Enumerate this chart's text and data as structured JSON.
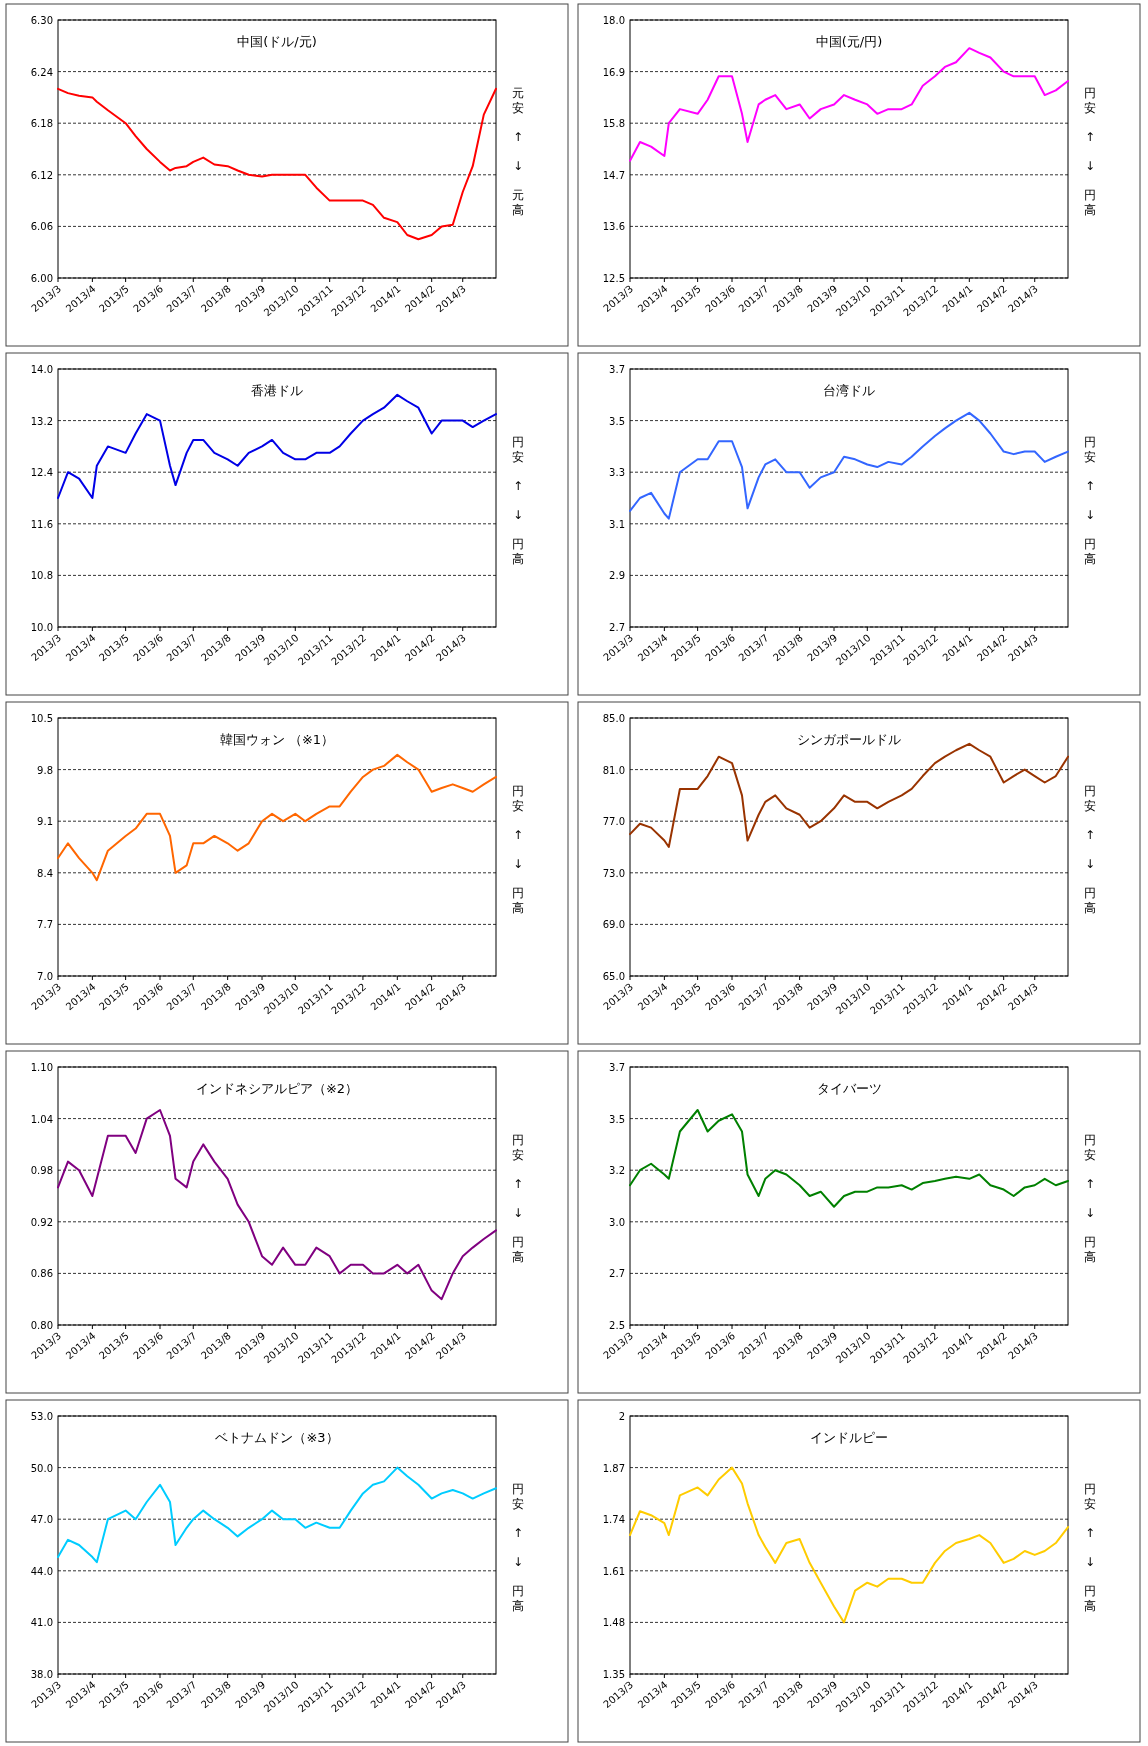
{
  "chart_data": [
    {
      "type": "line",
      "title": "中国(ドル/元)",
      "color": "#ff0000",
      "grid": "y",
      "annotations": [
        "元安",
        "↑",
        "↓",
        "元高"
      ],
      "xlim": [
        "2013-03-01",
        "2014-03-31"
      ],
      "xticks": [
        {
          "value": "2013-03-01",
          "label": "2013/3"
        },
        {
          "value": "2013-04-01",
          "label": "2013/4"
        },
        {
          "value": "2013-05-01",
          "label": "2013/5"
        },
        {
          "value": "2013-06-01",
          "label": "2013/6"
        },
        {
          "value": "2013-07-01",
          "label": "2013/7"
        },
        {
          "value": "2013-08-01",
          "label": "2013/8"
        },
        {
          "value": "2013-09-01",
          "label": "2013/9"
        },
        {
          "value": "2013-10-01",
          "label": "2013/10"
        },
        {
          "value": "2013-11-01",
          "label": "2013/11"
        },
        {
          "value": "2013-12-01",
          "label": "2013/12"
        },
        {
          "value": "2014-01-01",
          "label": "2014/1"
        },
        {
          "value": "2014-02-01",
          "label": "2014/2"
        },
        {
          "value": "2014-03-01",
          "label": "2014/3"
        }
      ],
      "ylim": [
        6.0,
        6.3
      ],
      "yticks": [
        {
          "value": 6.0,
          "label": "6.00"
        },
        {
          "value": 6.06,
          "label": "6.06"
        },
        {
          "value": 6.12,
          "label": "6.12"
        },
        {
          "value": 6.18,
          "label": "6.18"
        },
        {
          "value": 6.24,
          "label": "6.24"
        },
        {
          "value": 6.3,
          "label": "6.30"
        }
      ],
      "x": [
        "2013-03-01",
        "2013-03-10",
        "2013-03-20",
        "2013-04-01",
        "2013-04-05",
        "2013-04-15",
        "2013-05-01",
        "2013-05-10",
        "2013-05-20",
        "2013-06-01",
        "2013-06-10",
        "2013-06-15",
        "2013-06-25",
        "2013-07-01",
        "2013-07-10",
        "2013-07-20",
        "2013-08-01",
        "2013-08-10",
        "2013-08-20",
        "2013-09-01",
        "2013-09-10",
        "2013-09-20",
        "2013-10-01",
        "2013-10-10",
        "2013-10-20",
        "2013-11-01",
        "2013-11-10",
        "2013-11-20",
        "2013-12-01",
        "2013-12-10",
        "2013-12-20",
        "2014-01-01",
        "2014-01-10",
        "2014-01-20",
        "2014-02-01",
        "2014-02-10",
        "2014-02-20",
        "2014-03-01",
        "2014-03-10",
        "2014-03-20",
        "2014-03-31"
      ],
      "values": [
        6.22,
        6.215,
        6.212,
        6.21,
        6.205,
        6.195,
        6.18,
        6.165,
        6.15,
        6.135,
        6.125,
        6.128,
        6.13,
        6.135,
        6.14,
        6.132,
        6.13,
        6.125,
        6.12,
        6.118,
        6.12,
        6.12,
        6.12,
        6.12,
        6.105,
        6.09,
        6.09,
        6.09,
        6.09,
        6.085,
        6.07,
        6.065,
        6.05,
        6.045,
        6.05,
        6.06,
        6.062,
        6.1,
        6.13,
        6.19,
        6.22
      ]
    },
    {
      "type": "line",
      "title": "中国(元/円)",
      "color": "#ff00ff",
      "grid": "y",
      "annotations": [
        "円安",
        "↑",
        "↓",
        "円高"
      ],
      "xlim": [
        "2013-03-01",
        "2014-03-31"
      ],
      "xticks": [
        {
          "value": "2013-03-01",
          "label": "2013/3"
        },
        {
          "value": "2013-04-01",
          "label": "2013/4"
        },
        {
          "value": "2013-05-01",
          "label": "2013/5"
        },
        {
          "value": "2013-06-01",
          "label": "2013/6"
        },
        {
          "value": "2013-07-01",
          "label": "2013/7"
        },
        {
          "value": "2013-08-01",
          "label": "2013/8"
        },
        {
          "value": "2013-09-01",
          "label": "2013/9"
        },
        {
          "value": "2013-10-01",
          "label": "2013/10"
        },
        {
          "value": "2013-11-01",
          "label": "2013/11"
        },
        {
          "value": "2013-12-01",
          "label": "2013/12"
        },
        {
          "value": "2014-01-01",
          "label": "2014/1"
        },
        {
          "value": "2014-02-01",
          "label": "2014/2"
        },
        {
          "value": "2014-03-01",
          "label": "2014/3"
        }
      ],
      "ylim": [
        12.5,
        18.0
      ],
      "yticks": [
        {
          "value": 12.5,
          "label": "12.5"
        },
        {
          "value": 13.6,
          "label": "13.6"
        },
        {
          "value": 14.7,
          "label": "14.7"
        },
        {
          "value": 15.8,
          "label": "15.8"
        },
        {
          "value": 16.9,
          "label": "16.9"
        },
        {
          "value": 18.0,
          "label": "18.0"
        }
      ],
      "x": [
        "2013-03-01",
        "2013-03-10",
        "2013-03-20",
        "2013-04-01",
        "2013-04-05",
        "2013-04-15",
        "2013-05-01",
        "2013-05-10",
        "2013-05-20",
        "2013-06-01",
        "2013-06-10",
        "2013-06-15",
        "2013-06-25",
        "2013-07-01",
        "2013-07-10",
        "2013-07-20",
        "2013-08-01",
        "2013-08-10",
        "2013-08-20",
        "2013-09-01",
        "2013-09-10",
        "2013-09-20",
        "2013-10-01",
        "2013-10-10",
        "2013-10-20",
        "2013-11-01",
        "2013-11-10",
        "2013-11-20",
        "2013-12-01",
        "2013-12-10",
        "2013-12-20",
        "2014-01-01",
        "2014-01-10",
        "2014-01-20",
        "2014-02-01",
        "2014-02-10",
        "2014-02-20",
        "2014-03-01",
        "2014-03-10",
        "2014-03-20",
        "2014-03-31"
      ],
      "values": [
        15.0,
        15.4,
        15.3,
        15.1,
        15.8,
        16.1,
        16.0,
        16.3,
        16.8,
        16.8,
        16.0,
        15.4,
        16.2,
        16.3,
        16.4,
        16.1,
        16.2,
        15.9,
        16.1,
        16.2,
        16.4,
        16.3,
        16.2,
        16.0,
        16.1,
        16.1,
        16.2,
        16.6,
        16.8,
        17.0,
        17.1,
        17.4,
        17.3,
        17.2,
        16.9,
        16.8,
        16.8,
        16.8,
        16.4,
        16.5,
        16.7
      ]
    },
    {
      "type": "line",
      "title": "香港ドル",
      "color": "#0000e6",
      "grid": "y",
      "annotations": [
        "円安",
        "↑",
        "↓",
        "円高"
      ],
      "xlim": [
        "2013-03-01",
        "2014-03-31"
      ],
      "xticks": [
        {
          "value": "2013-03-01",
          "label": "2013/3"
        },
        {
          "value": "2013-04-01",
          "label": "2013/4"
        },
        {
          "value": "2013-05-01",
          "label": "2013/5"
        },
        {
          "value": "2013-06-01",
          "label": "2013/6"
        },
        {
          "value": "2013-07-01",
          "label": "2013/7"
        },
        {
          "value": "2013-08-01",
          "label": "2013/8"
        },
        {
          "value": "2013-09-01",
          "label": "2013/9"
        },
        {
          "value": "2013-10-01",
          "label": "2013/10"
        },
        {
          "value": "2013-11-01",
          "label": "2013/11"
        },
        {
          "value": "2013-12-01",
          "label": "2013/12"
        },
        {
          "value": "2014-01-01",
          "label": "2014/1"
        },
        {
          "value": "2014-02-01",
          "label": "2014/2"
        },
        {
          "value": "2014-03-01",
          "label": "2014/3"
        }
      ],
      "ylim": [
        10.0,
        14.0
      ],
      "yticks": [
        {
          "value": 10.0,
          "label": "10.0"
        },
        {
          "value": 10.8,
          "label": "10.8"
        },
        {
          "value": 11.6,
          "label": "11.6"
        },
        {
          "value": 12.4,
          "label": "12.4"
        },
        {
          "value": 13.2,
          "label": "13.2"
        },
        {
          "value": 14.0,
          "label": "14.0"
        }
      ],
      "x": [
        "2013-03-01",
        "2013-03-10",
        "2013-03-20",
        "2013-04-01",
        "2013-04-05",
        "2013-04-15",
        "2013-05-01",
        "2013-05-10",
        "2013-05-20",
        "2013-06-01",
        "2013-06-10",
        "2013-06-15",
        "2013-06-25",
        "2013-07-01",
        "2013-07-10",
        "2013-07-20",
        "2013-08-01",
        "2013-08-10",
        "2013-08-20",
        "2013-09-01",
        "2013-09-10",
        "2013-09-20",
        "2013-10-01",
        "2013-10-10",
        "2013-10-20",
        "2013-11-01",
        "2013-11-10",
        "2013-11-20",
        "2013-12-01",
        "2013-12-10",
        "2013-12-20",
        "2014-01-01",
        "2014-01-10",
        "2014-01-20",
        "2014-02-01",
        "2014-02-10",
        "2014-02-20",
        "2014-03-01",
        "2014-03-10",
        "2014-03-20",
        "2014-03-31"
      ],
      "values": [
        12.0,
        12.4,
        12.3,
        12.0,
        12.5,
        12.8,
        12.7,
        13.0,
        13.3,
        13.2,
        12.5,
        12.2,
        12.7,
        12.9,
        12.9,
        12.7,
        12.6,
        12.5,
        12.7,
        12.8,
        12.9,
        12.7,
        12.6,
        12.6,
        12.7,
        12.7,
        12.8,
        13.0,
        13.2,
        13.3,
        13.4,
        13.6,
        13.5,
        13.4,
        13.0,
        13.2,
        13.2,
        13.2,
        13.1,
        13.2,
        13.3
      ]
    },
    {
      "type": "line",
      "title": "台湾ドル",
      "color": "#3366ff",
      "grid": "y",
      "annotations": [
        "円安",
        "↑",
        "↓",
        "円高"
      ],
      "xlim": [
        "2013-03-01",
        "2014-03-31"
      ],
      "xticks": [
        {
          "value": "2013-03-01",
          "label": "2013/3"
        },
        {
          "value": "2013-04-01",
          "label": "2013/4"
        },
        {
          "value": "2013-05-01",
          "label": "2013/5"
        },
        {
          "value": "2013-06-01",
          "label": "2013/6"
        },
        {
          "value": "2013-07-01",
          "label": "2013/7"
        },
        {
          "value": "2013-08-01",
          "label": "2013/8"
        },
        {
          "value": "2013-09-01",
          "label": "2013/9"
        },
        {
          "value": "2013-10-01",
          "label": "2013/10"
        },
        {
          "value": "2013-11-01",
          "label": "2013/11"
        },
        {
          "value": "2013-12-01",
          "label": "2013/12"
        },
        {
          "value": "2014-01-01",
          "label": "2014/1"
        },
        {
          "value": "2014-02-01",
          "label": "2014/2"
        },
        {
          "value": "2014-03-01",
          "label": "2014/3"
        }
      ],
      "ylim": [
        2.7,
        3.7
      ],
      "yticks": [
        {
          "value": 2.7,
          "label": "2.7"
        },
        {
          "value": 2.9,
          "label": "2.9"
        },
        {
          "value": 3.1,
          "label": "3.1"
        },
        {
          "value": 3.3,
          "label": "3.3"
        },
        {
          "value": 3.5,
          "label": "3.5"
        },
        {
          "value": 3.7,
          "label": "3.7"
        }
      ],
      "x": [
        "2013-03-01",
        "2013-03-10",
        "2013-03-20",
        "2013-04-01",
        "2013-04-05",
        "2013-04-15",
        "2013-05-01",
        "2013-05-10",
        "2013-05-20",
        "2013-06-01",
        "2013-06-10",
        "2013-06-15",
        "2013-06-25",
        "2013-07-01",
        "2013-07-10",
        "2013-07-20",
        "2013-08-01",
        "2013-08-10",
        "2013-08-20",
        "2013-09-01",
        "2013-09-10",
        "2013-09-20",
        "2013-10-01",
        "2013-10-10",
        "2013-10-20",
        "2013-11-01",
        "2013-11-10",
        "2013-11-20",
        "2013-12-01",
        "2013-12-10",
        "2013-12-20",
        "2014-01-01",
        "2014-01-10",
        "2014-01-20",
        "2014-02-01",
        "2014-02-10",
        "2014-02-20",
        "2014-03-01",
        "2014-03-10",
        "2014-03-20",
        "2014-03-31"
      ],
      "values": [
        3.15,
        3.2,
        3.22,
        3.14,
        3.12,
        3.3,
        3.35,
        3.35,
        3.42,
        3.42,
        3.32,
        3.16,
        3.28,
        3.33,
        3.35,
        3.3,
        3.3,
        3.24,
        3.28,
        3.3,
        3.36,
        3.35,
        3.33,
        3.32,
        3.34,
        3.33,
        3.36,
        3.4,
        3.44,
        3.47,
        3.5,
        3.53,
        3.5,
        3.45,
        3.38,
        3.37,
        3.38,
        3.38,
        3.34,
        3.36,
        3.38
      ]
    },
    {
      "type": "line",
      "title": "韓国ウォン （※1）",
      "color": "#ff6600",
      "grid": "y",
      "annotations": [
        "円安",
        "↑",
        "↓",
        "円高"
      ],
      "xlim": [
        "2013-03-01",
        "2014-03-31"
      ],
      "xticks": [
        {
          "value": "2013-03-01",
          "label": "2013/3"
        },
        {
          "value": "2013-04-01",
          "label": "2013/4"
        },
        {
          "value": "2013-05-01",
          "label": "2013/5"
        },
        {
          "value": "2013-06-01",
          "label": "2013/6"
        },
        {
          "value": "2013-07-01",
          "label": "2013/7"
        },
        {
          "value": "2013-08-01",
          "label": "2013/8"
        },
        {
          "value": "2013-09-01",
          "label": "2013/9"
        },
        {
          "value": "2013-10-01",
          "label": "2013/10"
        },
        {
          "value": "2013-11-01",
          "label": "2013/11"
        },
        {
          "value": "2013-12-01",
          "label": "2013/12"
        },
        {
          "value": "2014-01-01",
          "label": "2014/1"
        },
        {
          "value": "2014-02-01",
          "label": "2014/2"
        },
        {
          "value": "2014-03-01",
          "label": "2014/3"
        }
      ],
      "ylim": [
        7.0,
        10.5
      ],
      "yticks": [
        {
          "value": 7.0,
          "label": "7.0"
        },
        {
          "value": 7.7,
          "label": "7.7"
        },
        {
          "value": 8.4,
          "label": "8.4"
        },
        {
          "value": 9.1,
          "label": "9.1"
        },
        {
          "value": 9.8,
          "label": "9.8"
        },
        {
          "value": 10.5,
          "label": "10.5"
        }
      ],
      "x": [
        "2013-03-01",
        "2013-03-10",
        "2013-03-20",
        "2013-04-01",
        "2013-04-05",
        "2013-04-15",
        "2013-05-01",
        "2013-05-10",
        "2013-05-20",
        "2013-06-01",
        "2013-06-10",
        "2013-06-15",
        "2013-06-25",
        "2013-07-01",
        "2013-07-10",
        "2013-07-20",
        "2013-08-01",
        "2013-08-10",
        "2013-08-20",
        "2013-09-01",
        "2013-09-10",
        "2013-09-20",
        "2013-10-01",
        "2013-10-10",
        "2013-10-20",
        "2013-11-01",
        "2013-11-10",
        "2013-11-20",
        "2013-12-01",
        "2013-12-10",
        "2013-12-20",
        "2014-01-01",
        "2014-01-10",
        "2014-01-20",
        "2014-02-01",
        "2014-02-10",
        "2014-02-20",
        "2014-03-01",
        "2014-03-10",
        "2014-03-20",
        "2014-03-31"
      ],
      "values": [
        8.6,
        8.8,
        8.6,
        8.4,
        8.3,
        8.7,
        8.9,
        9.0,
        9.2,
        9.2,
        8.9,
        8.4,
        8.5,
        8.8,
        8.8,
        8.9,
        8.8,
        8.7,
        8.8,
        9.1,
        9.2,
        9.1,
        9.2,
        9.1,
        9.2,
        9.3,
        9.3,
        9.5,
        9.7,
        9.8,
        9.85,
        10.0,
        9.9,
        9.8,
        9.5,
        9.55,
        9.6,
        9.55,
        9.5,
        9.6,
        9.7
      ]
    },
    {
      "type": "line",
      "title": "シンガポールドル",
      "color": "#993300",
      "grid": "y",
      "annotations": [
        "円安",
        "↑",
        "↓",
        "円高"
      ],
      "xlim": [
        "2013-03-01",
        "2014-03-31"
      ],
      "xticks": [
        {
          "value": "2013-03-01",
          "label": "2013/3"
        },
        {
          "value": "2013-04-01",
          "label": "2013/4"
        },
        {
          "value": "2013-05-01",
          "label": "2013/5"
        },
        {
          "value": "2013-06-01",
          "label": "2013/6"
        },
        {
          "value": "2013-07-01",
          "label": "2013/7"
        },
        {
          "value": "2013-08-01",
          "label": "2013/8"
        },
        {
          "value": "2013-09-01",
          "label": "2013/9"
        },
        {
          "value": "2013-10-01",
          "label": "2013/10"
        },
        {
          "value": "2013-11-01",
          "label": "2013/11"
        },
        {
          "value": "2013-12-01",
          "label": "2013/12"
        },
        {
          "value": "2014-01-01",
          "label": "2014/1"
        },
        {
          "value": "2014-02-01",
          "label": "2014/2"
        },
        {
          "value": "2014-03-01",
          "label": "2014/3"
        }
      ],
      "ylim": [
        65.0,
        85.0
      ],
      "yticks": [
        {
          "value": 65.0,
          "label": "65.0"
        },
        {
          "value": 69.0,
          "label": "69.0"
        },
        {
          "value": 73.0,
          "label": "73.0"
        },
        {
          "value": 77.0,
          "label": "77.0"
        },
        {
          "value": 81.0,
          "label": "81.0"
        },
        {
          "value": 85.0,
          "label": "85.0"
        }
      ],
      "x": [
        "2013-03-01",
        "2013-03-10",
        "2013-03-20",
        "2013-04-01",
        "2013-04-05",
        "2013-04-15",
        "2013-05-01",
        "2013-05-10",
        "2013-05-20",
        "2013-06-01",
        "2013-06-10",
        "2013-06-15",
        "2013-06-25",
        "2013-07-01",
        "2013-07-10",
        "2013-07-20",
        "2013-08-01",
        "2013-08-10",
        "2013-08-20",
        "2013-09-01",
        "2013-09-10",
        "2013-09-20",
        "2013-10-01",
        "2013-10-10",
        "2013-10-20",
        "2013-11-01",
        "2013-11-10",
        "2013-11-20",
        "2013-12-01",
        "2013-12-10",
        "2013-12-20",
        "2014-01-01",
        "2014-01-10",
        "2014-01-20",
        "2014-02-01",
        "2014-02-10",
        "2014-02-20",
        "2014-03-01",
        "2014-03-10",
        "2014-03-20",
        "2014-03-31"
      ],
      "values": [
        76.0,
        76.8,
        76.5,
        75.5,
        75.0,
        79.5,
        79.5,
        80.5,
        82.0,
        81.5,
        79.0,
        75.5,
        77.5,
        78.5,
        79.0,
        78.0,
        77.5,
        76.5,
        77.0,
        78.0,
        79.0,
        78.5,
        78.5,
        78.0,
        78.5,
        79.0,
        79.5,
        80.5,
        81.5,
        82.0,
        82.5,
        83.0,
        82.5,
        82.0,
        80.0,
        80.5,
        81.0,
        80.5,
        80.0,
        80.5,
        82.0
      ]
    },
    {
      "type": "line",
      "title": "インドネシアルピア（※2）",
      "color": "#800080",
      "grid": "y",
      "annotations": [
        "円安",
        "↑",
        "↓",
        "円高"
      ],
      "xlim": [
        "2013-03-01",
        "2014-03-31"
      ],
      "xticks": [
        {
          "value": "2013-03-01",
          "label": "2013/3"
        },
        {
          "value": "2013-04-01",
          "label": "2013/4"
        },
        {
          "value": "2013-05-01",
          "label": "2013/5"
        },
        {
          "value": "2013-06-01",
          "label": "2013/6"
        },
        {
          "value": "2013-07-01",
          "label": "2013/7"
        },
        {
          "value": "2013-08-01",
          "label": "2013/8"
        },
        {
          "value": "2013-09-01",
          "label": "2013/9"
        },
        {
          "value": "2013-10-01",
          "label": "2013/10"
        },
        {
          "value": "2013-11-01",
          "label": "2013/11"
        },
        {
          "value": "2013-12-01",
          "label": "2013/12"
        },
        {
          "value": "2014-01-01",
          "label": "2014/1"
        },
        {
          "value": "2014-02-01",
          "label": "2014/2"
        },
        {
          "value": "2014-03-01",
          "label": "2014/3"
        }
      ],
      "ylim": [
        0.8,
        1.1
      ],
      "yticks": [
        {
          "value": 0.8,
          "label": "0.80"
        },
        {
          "value": 0.86,
          "label": "0.86"
        },
        {
          "value": 0.92,
          "label": "0.92"
        },
        {
          "value": 0.98,
          "label": "0.98"
        },
        {
          "value": 1.04,
          "label": "1.04"
        },
        {
          "value": 1.1,
          "label": "1.10"
        }
      ],
      "x": [
        "2013-03-01",
        "2013-03-10",
        "2013-03-20",
        "2013-04-01",
        "2013-04-05",
        "2013-04-15",
        "2013-05-01",
        "2013-05-10",
        "2013-05-20",
        "2013-06-01",
        "2013-06-10",
        "2013-06-15",
        "2013-06-25",
        "2013-07-01",
        "2013-07-10",
        "2013-07-20",
        "2013-08-01",
        "2013-08-10",
        "2013-08-20",
        "2013-09-01",
        "2013-09-10",
        "2013-09-20",
        "2013-10-01",
        "2013-10-10",
        "2013-10-20",
        "2013-11-01",
        "2013-11-10",
        "2013-11-20",
        "2013-12-01",
        "2013-12-10",
        "2013-12-20",
        "2014-01-01",
        "2014-01-10",
        "2014-01-20",
        "2014-02-01",
        "2014-02-10",
        "2014-02-20",
        "2014-03-01",
        "2014-03-10",
        "2014-03-20",
        "2014-03-31"
      ],
      "values": [
        0.96,
        0.99,
        0.98,
        0.95,
        0.97,
        1.02,
        1.02,
        1.0,
        1.04,
        1.05,
        1.02,
        0.97,
        0.96,
        0.99,
        1.01,
        0.99,
        0.97,
        0.94,
        0.92,
        0.88,
        0.87,
        0.89,
        0.87,
        0.87,
        0.89,
        0.88,
        0.86,
        0.87,
        0.87,
        0.86,
        0.86,
        0.87,
        0.86,
        0.87,
        0.84,
        0.83,
        0.86,
        0.88,
        0.89,
        0.9,
        0.91
      ]
    },
    {
      "type": "line",
      "title": "タイバーツ",
      "color": "#008000",
      "grid": "y",
      "annotations": [
        "円安",
        "↑",
        "↓",
        "円高"
      ],
      "xlim": [
        "2013-03-01",
        "2014-03-31"
      ],
      "xticks": [
        {
          "value": "2013-03-01",
          "label": "2013/3"
        },
        {
          "value": "2013-04-01",
          "label": "2013/4"
        },
        {
          "value": "2013-05-01",
          "label": "2013/5"
        },
        {
          "value": "2013-06-01",
          "label": "2013/6"
        },
        {
          "value": "2013-07-01",
          "label": "2013/7"
        },
        {
          "value": "2013-08-01",
          "label": "2013/8"
        },
        {
          "value": "2013-09-01",
          "label": "2013/9"
        },
        {
          "value": "2013-10-01",
          "label": "2013/10"
        },
        {
          "value": "2013-11-01",
          "label": "2013/11"
        },
        {
          "value": "2013-12-01",
          "label": "2013/12"
        },
        {
          "value": "2014-01-01",
          "label": "2014/1"
        },
        {
          "value": "2014-02-01",
          "label": "2014/2"
        },
        {
          "value": "2014-03-01",
          "label": "2014/3"
        }
      ],
      "ylim": [
        2.5,
        3.7
      ],
      "yticks": [
        {
          "value": 2.5,
          "label": "2.5"
        },
        {
          "value": 2.74,
          "label": "2.7"
        },
        {
          "value": 2.98,
          "label": "3.0"
        },
        {
          "value": 3.22,
          "label": "3.2"
        },
        {
          "value": 3.46,
          "label": "3.5"
        },
        {
          "value": 3.7,
          "label": "3.7"
        }
      ],
      "x": [
        "2013-03-01",
        "2013-03-10",
        "2013-03-20",
        "2013-04-01",
        "2013-04-05",
        "2013-04-15",
        "2013-05-01",
        "2013-05-10",
        "2013-05-20",
        "2013-06-01",
        "2013-06-10",
        "2013-06-15",
        "2013-06-25",
        "2013-07-01",
        "2013-07-10",
        "2013-07-20",
        "2013-08-01",
        "2013-08-10",
        "2013-08-20",
        "2013-09-01",
        "2013-09-10",
        "2013-09-20",
        "2013-10-01",
        "2013-10-10",
        "2013-10-20",
        "2013-11-01",
        "2013-11-10",
        "2013-11-20",
        "2013-12-01",
        "2013-12-10",
        "2013-12-20",
        "2014-01-01",
        "2014-01-10",
        "2014-01-20",
        "2014-02-01",
        "2014-02-10",
        "2014-02-20",
        "2014-03-01",
        "2014-03-10",
        "2014-03-20",
        "2014-03-31"
      ],
      "values": [
        3.15,
        3.22,
        3.25,
        3.2,
        3.18,
        3.4,
        3.5,
        3.4,
        3.45,
        3.48,
        3.4,
        3.2,
        3.1,
        3.18,
        3.22,
        3.2,
        3.15,
        3.1,
        3.12,
        3.05,
        3.1,
        3.12,
        3.12,
        3.14,
        3.14,
        3.15,
        3.13,
        3.16,
        3.17,
        3.18,
        3.19,
        3.18,
        3.2,
        3.15,
        3.13,
        3.1,
        3.14,
        3.15,
        3.18,
        3.15,
        3.17
      ]
    },
    {
      "type": "line",
      "title": "ベトナムドン（※3）",
      "color": "#00ccff",
      "grid": "y",
      "annotations": [
        "円安",
        "↑",
        "↓",
        "円高"
      ],
      "xlim": [
        "2013-03-01",
        "2014-03-31"
      ],
      "xticks": [
        {
          "value": "2013-03-01",
          "label": "2013/3"
        },
        {
          "value": "2013-04-01",
          "label": "2013/4"
        },
        {
          "value": "2013-05-01",
          "label": "2013/5"
        },
        {
          "value": "2013-06-01",
          "label": "2013/6"
        },
        {
          "value": "2013-07-01",
          "label": "2013/7"
        },
        {
          "value": "2013-08-01",
          "label": "2013/8"
        },
        {
          "value": "2013-09-01",
          "label": "2013/9"
        },
        {
          "value": "2013-10-01",
          "label": "2013/10"
        },
        {
          "value": "2013-11-01",
          "label": "2013/11"
        },
        {
          "value": "2013-12-01",
          "label": "2013/12"
        },
        {
          "value": "2014-01-01",
          "label": "2014/1"
        },
        {
          "value": "2014-02-01",
          "label": "2014/2"
        },
        {
          "value": "2014-03-01",
          "label": "2014/3"
        }
      ],
      "ylim": [
        38.0,
        53.0
      ],
      "yticks": [
        {
          "value": 38.0,
          "label": "38.0"
        },
        {
          "value": 41.0,
          "label": "41.0"
        },
        {
          "value": 44.0,
          "label": "44.0"
        },
        {
          "value": 47.0,
          "label": "47.0"
        },
        {
          "value": 50.0,
          "label": "50.0"
        },
        {
          "value": 53.0,
          "label": "53.0"
        }
      ],
      "x": [
        "2013-03-01",
        "2013-03-10",
        "2013-03-20",
        "2013-04-01",
        "2013-04-05",
        "2013-04-15",
        "2013-05-01",
        "2013-05-10",
        "2013-05-20",
        "2013-06-01",
        "2013-06-10",
        "2013-06-15",
        "2013-06-25",
        "2013-07-01",
        "2013-07-10",
        "2013-07-20",
        "2013-08-01",
        "2013-08-10",
        "2013-08-20",
        "2013-09-01",
        "2013-09-10",
        "2013-09-20",
        "2013-10-01",
        "2013-10-10",
        "2013-10-20",
        "2013-11-01",
        "2013-11-10",
        "2013-11-20",
        "2013-12-01",
        "2013-12-10",
        "2013-12-20",
        "2014-01-01",
        "2014-01-10",
        "2014-01-20",
        "2014-02-01",
        "2014-02-10",
        "2014-02-20",
        "2014-03-01",
        "2014-03-10",
        "2014-03-20",
        "2014-03-31"
      ],
      "values": [
        44.8,
        45.8,
        45.5,
        44.8,
        44.5,
        47.0,
        47.5,
        47.0,
        48.0,
        49.0,
        48.0,
        45.5,
        46.5,
        47.0,
        47.5,
        47.0,
        46.5,
        46.0,
        46.5,
        47.0,
        47.5,
        47.0,
        47.0,
        46.5,
        46.8,
        46.5,
        46.5,
        47.5,
        48.5,
        49.0,
        49.2,
        50.0,
        49.5,
        49.0,
        48.2,
        48.5,
        48.7,
        48.5,
        48.2,
        48.5,
        48.8
      ]
    },
    {
      "type": "line",
      "title": "インドルピー",
      "color": "#ffcc00",
      "grid": "y",
      "annotations": [
        "円安",
        "↑",
        "↓",
        "円高"
      ],
      "xlim": [
        "2013-03-01",
        "2014-03-31"
      ],
      "xticks": [
        {
          "value": "2013-03-01",
          "label": "2013/3"
        },
        {
          "value": "2013-04-01",
          "label": "2013/4"
        },
        {
          "value": "2013-05-01",
          "label": "2013/5"
        },
        {
          "value": "2013-06-01",
          "label": "2013/6"
        },
        {
          "value": "2013-07-01",
          "label": "2013/7"
        },
        {
          "value": "2013-08-01",
          "label": "2013/8"
        },
        {
          "value": "2013-09-01",
          "label": "2013/9"
        },
        {
          "value": "2013-10-01",
          "label": "2013/10"
        },
        {
          "value": "2013-11-01",
          "label": "2013/11"
        },
        {
          "value": "2013-12-01",
          "label": "2013/12"
        },
        {
          "value": "2014-01-01",
          "label": "2014/1"
        },
        {
          "value": "2014-02-01",
          "label": "2014/2"
        },
        {
          "value": "2014-03-01",
          "label": "2014/3"
        }
      ],
      "ylim": [
        1.35,
        2.0
      ],
      "yticks": [
        {
          "value": 1.35,
          "label": "1.35"
        },
        {
          "value": 1.48,
          "label": "1.48"
        },
        {
          "value": 1.61,
          "label": "1.61"
        },
        {
          "value": 1.74,
          "label": "1.74"
        },
        {
          "value": 1.87,
          "label": "1.87"
        },
        {
          "value": 2.0,
          "label": "2"
        }
      ],
      "x": [
        "2013-03-01",
        "2013-03-10",
        "2013-03-20",
        "2013-04-01",
        "2013-04-05",
        "2013-04-15",
        "2013-05-01",
        "2013-05-10",
        "2013-05-20",
        "2013-06-01",
        "2013-06-10",
        "2013-06-15",
        "2013-06-25",
        "2013-07-01",
        "2013-07-10",
        "2013-07-20",
        "2013-08-01",
        "2013-08-10",
        "2013-08-20",
        "2013-09-01",
        "2013-09-10",
        "2013-09-20",
        "2013-10-01",
        "2013-10-10",
        "2013-10-20",
        "2013-11-01",
        "2013-11-10",
        "2013-11-20",
        "2013-12-01",
        "2013-12-10",
        "2013-12-20",
        "2014-01-01",
        "2014-01-10",
        "2014-01-20",
        "2014-02-01",
        "2014-02-10",
        "2014-02-20",
        "2014-03-01",
        "2014-03-10",
        "2014-03-20",
        "2014-03-31"
      ],
      "values": [
        1.7,
        1.76,
        1.75,
        1.73,
        1.7,
        1.8,
        1.82,
        1.8,
        1.84,
        1.87,
        1.83,
        1.78,
        1.7,
        1.67,
        1.63,
        1.68,
        1.69,
        1.63,
        1.58,
        1.52,
        1.48,
        1.56,
        1.58,
        1.57,
        1.59,
        1.59,
        1.58,
        1.58,
        1.63,
        1.66,
        1.68,
        1.69,
        1.7,
        1.68,
        1.63,
        1.64,
        1.66,
        1.65,
        1.66,
        1.68,
        1.72
      ]
    }
  ]
}
